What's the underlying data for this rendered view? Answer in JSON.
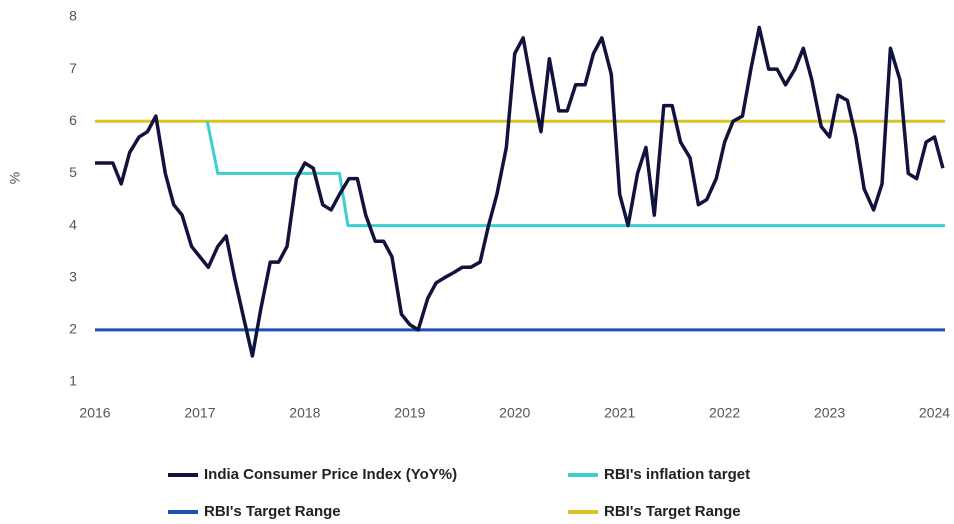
{
  "chart_data": {
    "type": "line",
    "y_label": "%",
    "xlim": [
      2016,
      2024.1
    ],
    "xticks": [
      2016,
      2017,
      2018,
      2019,
      2020,
      2021,
      2022,
      2023,
      2024
    ],
    "ylim": [
      1,
      8
    ],
    "yticks": [
      1,
      2,
      3,
      4,
      5,
      6,
      7,
      8
    ],
    "grid": false,
    "legend": "bottom",
    "series": [
      {
        "name": "India Consumer Price Index (YoY%)",
        "color": "#12123f",
        "x": [
          2016.0,
          2016.08,
          2016.17,
          2016.25,
          2016.33,
          2016.42,
          2016.5,
          2016.58,
          2016.67,
          2016.75,
          2016.83,
          2016.92,
          2017.0,
          2017.08,
          2017.17,
          2017.25,
          2017.33,
          2017.42,
          2017.5,
          2017.58,
          2017.67,
          2017.75,
          2017.83,
          2017.92,
          2018.0,
          2018.08,
          2018.17,
          2018.25,
          2018.33,
          2018.42,
          2018.5,
          2018.58,
          2018.67,
          2018.75,
          2018.83,
          2018.92,
          2019.0,
          2019.08,
          2019.17,
          2019.25,
          2019.33,
          2019.42,
          2019.5,
          2019.58,
          2019.67,
          2019.75,
          2019.83,
          2019.92,
          2020.0,
          2020.08,
          2020.17,
          2020.25,
          2020.33,
          2020.42,
          2020.5,
          2020.58,
          2020.67,
          2020.75,
          2020.83,
          2020.92,
          2021.0,
          2021.08,
          2021.17,
          2021.25,
          2021.33,
          2021.42,
          2021.5,
          2021.58,
          2021.67,
          2021.75,
          2021.83,
          2021.92,
          2022.0,
          2022.08,
          2022.17,
          2022.25,
          2022.33,
          2022.42,
          2022.5,
          2022.58,
          2022.67,
          2022.75,
          2022.83,
          2022.92,
          2023.0,
          2023.08,
          2023.17,
          2023.25,
          2023.33,
          2023.42,
          2023.5,
          2023.58,
          2023.67,
          2023.75,
          2023.83,
          2023.92,
          2024.0,
          2024.08
        ],
        "values": [
          5.2,
          5.2,
          5.2,
          4.8,
          5.4,
          5.7,
          5.8,
          6.1,
          5.0,
          4.4,
          4.2,
          3.6,
          3.4,
          3.2,
          3.6,
          3.8,
          3.0,
          2.2,
          1.5,
          2.4,
          3.3,
          3.3,
          3.6,
          4.9,
          5.2,
          5.1,
          4.4,
          4.3,
          4.6,
          4.9,
          4.9,
          4.2,
          3.7,
          3.7,
          3.4,
          2.3,
          2.1,
          2.0,
          2.6,
          2.9,
          3.0,
          3.1,
          3.2,
          3.2,
          3.3,
          4.0,
          4.6,
          5.5,
          7.3,
          7.6,
          6.6,
          5.8,
          7.2,
          6.2,
          6.2,
          6.7,
          6.7,
          7.3,
          7.6,
          6.9,
          4.6,
          4.0,
          5.0,
          5.5,
          4.2,
          6.3,
          6.3,
          5.6,
          5.3,
          4.4,
          4.5,
          4.9,
          5.6,
          6.0,
          6.1,
          7.0,
          7.8,
          7.0,
          7.0,
          6.7,
          7.0,
          7.4,
          6.8,
          5.9,
          5.7,
          6.5,
          6.4,
          5.7,
          4.7,
          4.3,
          4.8,
          7.4,
          6.8,
          5.0,
          4.9,
          5.6,
          5.7,
          5.1
        ]
      },
      {
        "name": "RBI's inflation target",
        "color": "#3ccfcf",
        "x": [
          2017.07,
          2017.17,
          2018.33,
          2018.41,
          2024.1
        ],
        "values": [
          6,
          5,
          5,
          4,
          4
        ]
      },
      {
        "name": "RBI's Target Range",
        "color": "#1d4fb8",
        "x": [
          2016,
          2024.1
        ],
        "values": [
          2,
          2
        ]
      },
      {
        "name": "RBI's Target Range",
        "color": "#d8c426",
        "x": [
          2016,
          2024.1
        ],
        "values": [
          6,
          6
        ]
      }
    ]
  }
}
